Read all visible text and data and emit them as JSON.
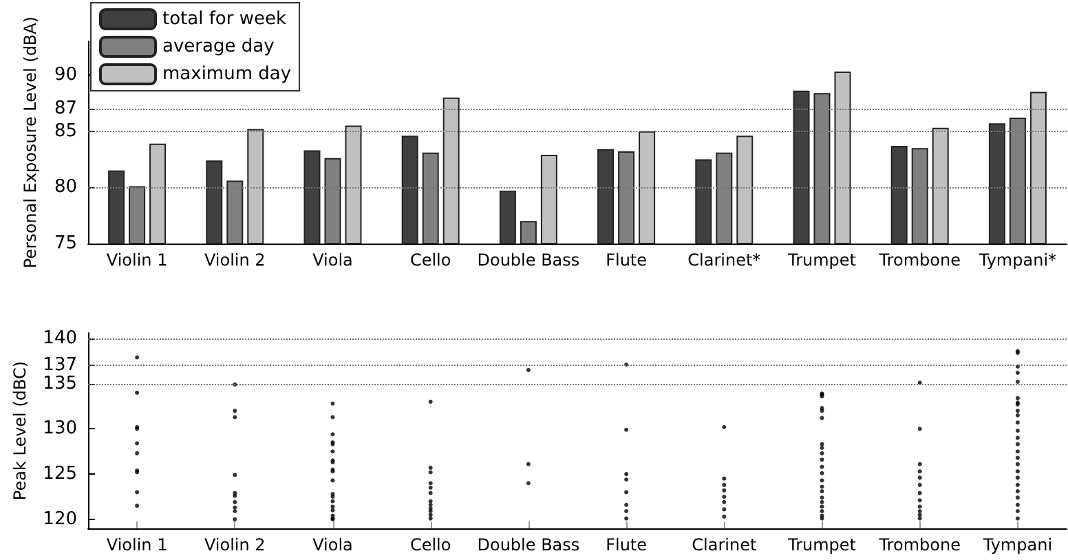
{
  "chart_data": [
    {
      "type": "bar",
      "ylabel": "Personal Exposure Level (dBA)",
      "categories": [
        "Violin 1",
        "Violin 2",
        "Viola",
        "Cello",
        "Double Bass",
        "Flute",
        "Clarinet*",
        "Trumpet",
        "Trombone",
        "Tympani*"
      ],
      "series": [
        {
          "name": "total for week",
          "color": "#404040",
          "values": [
            81.5,
            82.4,
            83.3,
            84.6,
            79.7,
            83.4,
            82.5,
            88.6,
            83.7,
            85.7
          ]
        },
        {
          "name": "average day",
          "color": "#808080",
          "values": [
            80.1,
            80.6,
            82.6,
            83.1,
            77.0,
            83.2,
            83.1,
            88.4,
            83.5,
            86.2
          ]
        },
        {
          "name": "maximum day",
          "color": "#c0c0c0",
          "values": [
            83.9,
            85.2,
            85.5,
            88.0,
            82.9,
            85.0,
            84.6,
            90.3,
            85.3,
            88.5
          ]
        }
      ],
      "ylim": [
        75,
        93
      ],
      "yticks": [
        75,
        80,
        85,
        87,
        90
      ],
      "ref_lines": [
        {
          "axis": "y",
          "value": 80,
          "line_style": "dotted"
        },
        {
          "axis": "y",
          "value": 85,
          "line_style": "dotted"
        },
        {
          "axis": "y",
          "value": 87,
          "line_style": "dotted"
        }
      ],
      "legend": "top left"
    },
    {
      "type": "scatter",
      "ylabel": "Peak Level (dBC)",
      "categories": [
        "Violin 1",
        "Violin 2",
        "Viola",
        "Cello",
        "Double Bass",
        "Flute",
        "Clarinet",
        "Trumpet",
        "Trombone",
        "Tympani"
      ],
      "series": [
        {
          "color": "#000000",
          "x": [
            "Violin 1",
            "Violin 1",
            "Violin 1",
            "Violin 1",
            "Violin 1",
            "Violin 1",
            "Violin 1",
            "Violin 1",
            "Violin 1",
            "Violin 1",
            "Violin 2",
            "Violin 2",
            "Violin 2",
            "Violin 2",
            "Violin 2",
            "Violin 2",
            "Violin 2",
            "Violin 2",
            "Violin 2",
            "Violin 2",
            "Viola",
            "Viola",
            "Viola",
            "Viola",
            "Viola",
            "Viola",
            "Viola",
            "Viola",
            "Viola",
            "Viola",
            "Viola",
            "Viola",
            "Viola",
            "Viola",
            "Viola",
            "Viola",
            "Viola",
            "Viola",
            "Viola",
            "Cello",
            "Cello",
            "Cello",
            "Cello",
            "Cello",
            "Cello",
            "Cello",
            "Cello",
            "Cello",
            "Cello",
            "Cello",
            "Cello",
            "Double Bass",
            "Double Bass",
            "Double Bass",
            "Flute",
            "Flute",
            "Flute",
            "Flute",
            "Flute",
            "Flute",
            "Flute",
            "Flute",
            "Clarinet",
            "Clarinet",
            "Clarinet",
            "Clarinet",
            "Clarinet",
            "Clarinet",
            "Clarinet",
            "Clarinet",
            "Trumpet",
            "Trumpet",
            "Trumpet",
            "Trumpet",
            "Trumpet",
            "Trumpet",
            "Trumpet",
            "Trumpet",
            "Trumpet",
            "Trumpet",
            "Trumpet",
            "Trumpet",
            "Trumpet",
            "Trumpet",
            "Trumpet",
            "Trumpet",
            "Trumpet",
            "Trumpet",
            "Trumpet",
            "Trumpet",
            "Trumpet",
            "Trombone",
            "Trombone",
            "Trombone",
            "Trombone",
            "Trombone",
            "Trombone",
            "Trombone",
            "Trombone",
            "Trombone",
            "Trombone",
            "Trombone",
            "Trombone",
            "Tympani",
            "Tympani",
            "Tympani",
            "Tympani",
            "Tympani",
            "Tympani",
            "Tympani",
            "Tympani",
            "Tympani",
            "Tympani",
            "Tympani",
            "Tympani",
            "Tympani",
            "Tympani",
            "Tympani",
            "Tympani",
            "Tympani",
            "Tympani",
            "Tympani",
            "Tympani",
            "Tympani",
            "Tympani",
            "Tympani",
            "Tympani",
            "Tympani"
          ],
          "values": [
            137.9,
            134.0,
            130.2,
            130.0,
            128.4,
            127.3,
            125.4,
            125.2,
            123.0,
            121.5,
            134.9,
            132.0,
            131.3,
            124.9,
            122.9,
            122.6,
            121.9,
            121.3,
            120.9,
            120.0,
            132.8,
            131.3,
            129.4,
            128.5,
            128.3,
            127.5,
            126.5,
            126.3,
            125.5,
            125.3,
            124.3,
            122.8,
            122.5,
            122.0,
            121.4,
            121.0,
            120.4,
            120.1,
            120.0,
            133.0,
            125.7,
            125.2,
            124.0,
            123.5,
            122.9,
            122.0,
            121.6,
            121.2,
            120.9,
            120.5,
            120.1,
            136.5,
            126.1,
            124.0,
            137.1,
            129.9,
            125.0,
            124.4,
            123.0,
            121.6,
            120.9,
            120.1,
            130.2,
            124.5,
            123.8,
            123.2,
            122.5,
            121.9,
            121.1,
            120.3,
            133.9,
            133.6,
            133.8,
            132.3,
            132.0,
            131.2,
            128.3,
            127.9,
            127.3,
            126.6,
            125.8,
            125.1,
            124.3,
            123.6,
            123.1,
            122.4,
            121.9,
            121.4,
            120.9,
            120.4,
            120.1,
            135.1,
            130.0,
            126.1,
            125.3,
            124.6,
            123.8,
            122.9,
            122.1,
            121.4,
            120.9,
            120.5,
            120.1,
            138.6,
            138.4,
            136.9,
            136.2,
            135.2,
            133.4,
            132.9,
            132.7,
            132.0,
            131.5,
            130.7,
            129.8,
            129.0,
            128.3,
            127.5,
            126.8,
            126.1,
            125.3,
            124.6,
            123.8,
            123.1,
            122.4,
            121.6,
            120.9,
            120.1
          ]
        }
      ],
      "ylim": [
        119,
        140.6
      ],
      "yticks": [
        120,
        125,
        130,
        135,
        137,
        140
      ],
      "ref_lines": [
        {
          "axis": "y",
          "value": 135,
          "line_style": "dotted"
        },
        {
          "axis": "y",
          "value": 137,
          "line_style": "dotted"
        },
        {
          "axis": "y",
          "value": 140,
          "line_style": "dotted"
        }
      ],
      "marker": "circle"
    }
  ]
}
